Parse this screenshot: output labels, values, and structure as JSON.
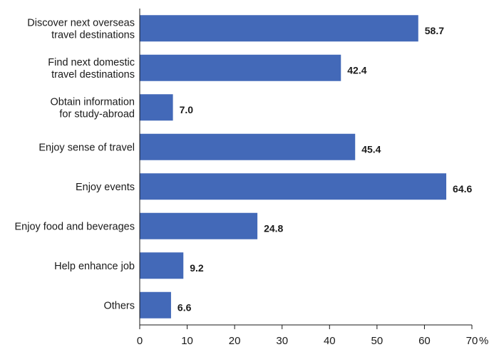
{
  "chart_data": {
    "type": "bar",
    "orientation": "horizontal",
    "categories": [
      [
        "Discover next overseas",
        "travel destinations"
      ],
      [
        "Find next domestic",
        "travel destinations"
      ],
      [
        "Obtain information",
        "for study-abroad"
      ],
      [
        "Enjoy sense of travel"
      ],
      [
        "Enjoy events"
      ],
      [
        "Enjoy food and beverages"
      ],
      [
        "Help enhance job"
      ],
      [
        "Others"
      ]
    ],
    "values": [
      58.7,
      42.4,
      7.0,
      45.4,
      64.6,
      24.8,
      9.2,
      6.6
    ],
    "value_labels": [
      "58.7",
      "42.4",
      "7.0",
      "45.4",
      "64.6",
      "24.8",
      "9.2",
      "6.6"
    ],
    "xlim": [
      0,
      70
    ],
    "xticks": [
      0,
      10,
      20,
      30,
      40,
      50,
      60,
      70
    ],
    "xtick_labels": [
      "0",
      "10",
      "20",
      "30",
      "40",
      "50",
      "60",
      "70"
    ],
    "x_unit": "%",
    "bar_color": "#4369b8",
    "grid": false
  }
}
